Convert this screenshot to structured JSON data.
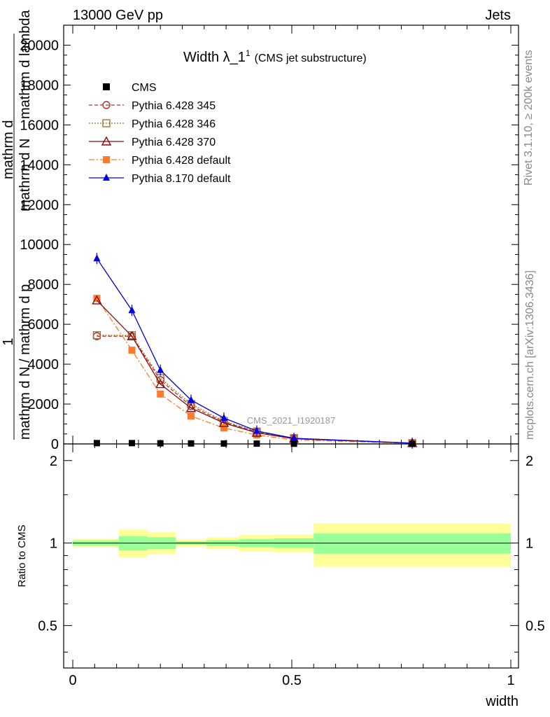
{
  "header": {
    "left": "13000 GeV pp",
    "right": "Jets",
    "side_top": "Rivet 3.1.10, ≥ 200k events",
    "side_bottom": "mcplots.cern.ch [arXiv:1306.3436]"
  },
  "top_panel": {
    "title_main": "Width λ_1",
    "title_sup": "1",
    "title_suffix": "(CMS jet substructure)",
    "watermark": "CMS_2021_I1920187",
    "ylabel_line1": "1",
    "ylabel_line2": "mathrm d N / mathrm d p",
    "ylabel_line3": "mathrm d",
    "ylabel_line4": "mathrm d N",
    "ylabel_line5": "mathrm d lambda",
    "yticks": [
      "0",
      "2000",
      "4000",
      "6000",
      "8000",
      "10000",
      "12000",
      "14000",
      "16000",
      "18000",
      "20000"
    ]
  },
  "ratio_panel": {
    "ylabel": "Ratio to CMS",
    "yticks": [
      "0.5",
      "1",
      "2"
    ],
    "xlabel": "width",
    "xticks": [
      "0",
      "0.5",
      "1"
    ]
  },
  "legend": [
    {
      "label": "CMS",
      "color": "#000000",
      "marker": "square-filled",
      "dash": ""
    },
    {
      "label": "Pythia 6.428 345",
      "color": "#b03030",
      "marker": "circle-open",
      "dash": "5,3"
    },
    {
      "label": "Pythia 6.428 346",
      "color": "#a07030",
      "marker": "square-open",
      "dash": "2,2"
    },
    {
      "label": "Pythia 6.428 370",
      "color": "#8b0a0a",
      "marker": "triangle-open",
      "dash": ""
    },
    {
      "label": "Pythia 6.428 default",
      "color": "#ff7a2a",
      "marker": "square-filled",
      "dash": "8,3,2,3"
    },
    {
      "label": "Pythia 8.170 default",
      "color": "#0000e0",
      "marker": "triangle-filled",
      "dash": ""
    }
  ],
  "chart_data": {
    "type": "line",
    "title": "Width λ_1^1 (CMS jet substructure)",
    "xlabel": "width",
    "ylabel": "1/(mathrm d N / mathrm d p) mathrm d^2 N / mathrm d p mathrm d lambda",
    "xlim": [
      0,
      1
    ],
    "ylim": [
      0,
      21000
    ],
    "x": [
      0.055,
      0.135,
      0.2,
      0.27,
      0.345,
      0.42,
      0.505,
      0.775
    ],
    "series": [
      {
        "name": "CMS",
        "values": [
          40,
          40,
          30,
          25,
          20,
          15,
          10,
          5
        ]
      },
      {
        "name": "Pythia 6.428 345",
        "values": [
          5400,
          5400,
          3200,
          1900,
          1100,
          600,
          280,
          40
        ]
      },
      {
        "name": "Pythia 6.428 346",
        "values": [
          5450,
          5450,
          3300,
          2000,
          1150,
          620,
          290,
          40
        ]
      },
      {
        "name": "Pythia 6.428 370",
        "values": [
          7200,
          5400,
          3000,
          1800,
          1050,
          560,
          260,
          40
        ]
      },
      {
        "name": "Pythia 6.428 default",
        "values": [
          7300,
          4700,
          2500,
          1400,
          800,
          450,
          200,
          30
        ]
      },
      {
        "name": "Pythia 8.170 default",
        "values": [
          9300,
          6700,
          3700,
          2200,
          1300,
          650,
          280,
          40
        ]
      }
    ],
    "ratio": {
      "ylim": [
        0.35,
        2.3
      ],
      "log": true,
      "bins": [
        {
          "x0": 0.0,
          "x1": 0.105,
          "inner": [
            0.98,
            1.02
          ],
          "outer": [
            0.965,
            1.035
          ]
        },
        {
          "x0": 0.105,
          "x1": 0.17,
          "inner": [
            0.94,
            1.06
          ],
          "outer": [
            0.885,
            1.12
          ]
        },
        {
          "x0": 0.17,
          "x1": 0.235,
          "inner": [
            0.95,
            1.05
          ],
          "outer": [
            0.91,
            1.095
          ]
        },
        {
          "x0": 0.235,
          "x1": 0.305,
          "inner": [
            0.985,
            1.015
          ],
          "outer": [
            0.97,
            1.03
          ]
        },
        {
          "x0": 0.305,
          "x1": 0.38,
          "inner": [
            0.975,
            1.025
          ],
          "outer": [
            0.95,
            1.05
          ]
        },
        {
          "x0": 0.38,
          "x1": 0.46,
          "inner": [
            0.965,
            1.035
          ],
          "outer": [
            0.93,
            1.07
          ]
        },
        {
          "x0": 0.46,
          "x1": 0.55,
          "inner": [
            0.96,
            1.04
          ],
          "outer": [
            0.925,
            1.075
          ]
        },
        {
          "x0": 0.55,
          "x1": 1.0,
          "inner": [
            0.915,
            1.085
          ],
          "outer": [
            0.82,
            1.18
          ]
        }
      ]
    }
  }
}
